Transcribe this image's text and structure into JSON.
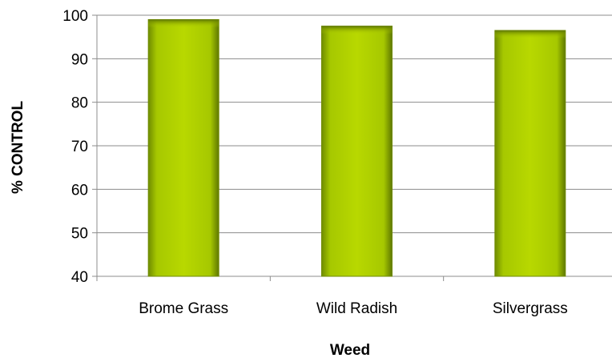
{
  "chart_data": {
    "type": "bar",
    "categories": [
      "Brome Grass",
      "Wild Radish",
      "Silvergrass"
    ],
    "values": [
      99,
      97.5,
      96.5
    ],
    "xlabel": "Weed",
    "ylabel": "% CONTROL",
    "ylim": [
      40,
      100
    ],
    "yticks": [
      40,
      50,
      60,
      70,
      80,
      90,
      100
    ],
    "grid": true,
    "bar_color": "#b3d000",
    "bar_edge_color": "#6f8a00"
  }
}
